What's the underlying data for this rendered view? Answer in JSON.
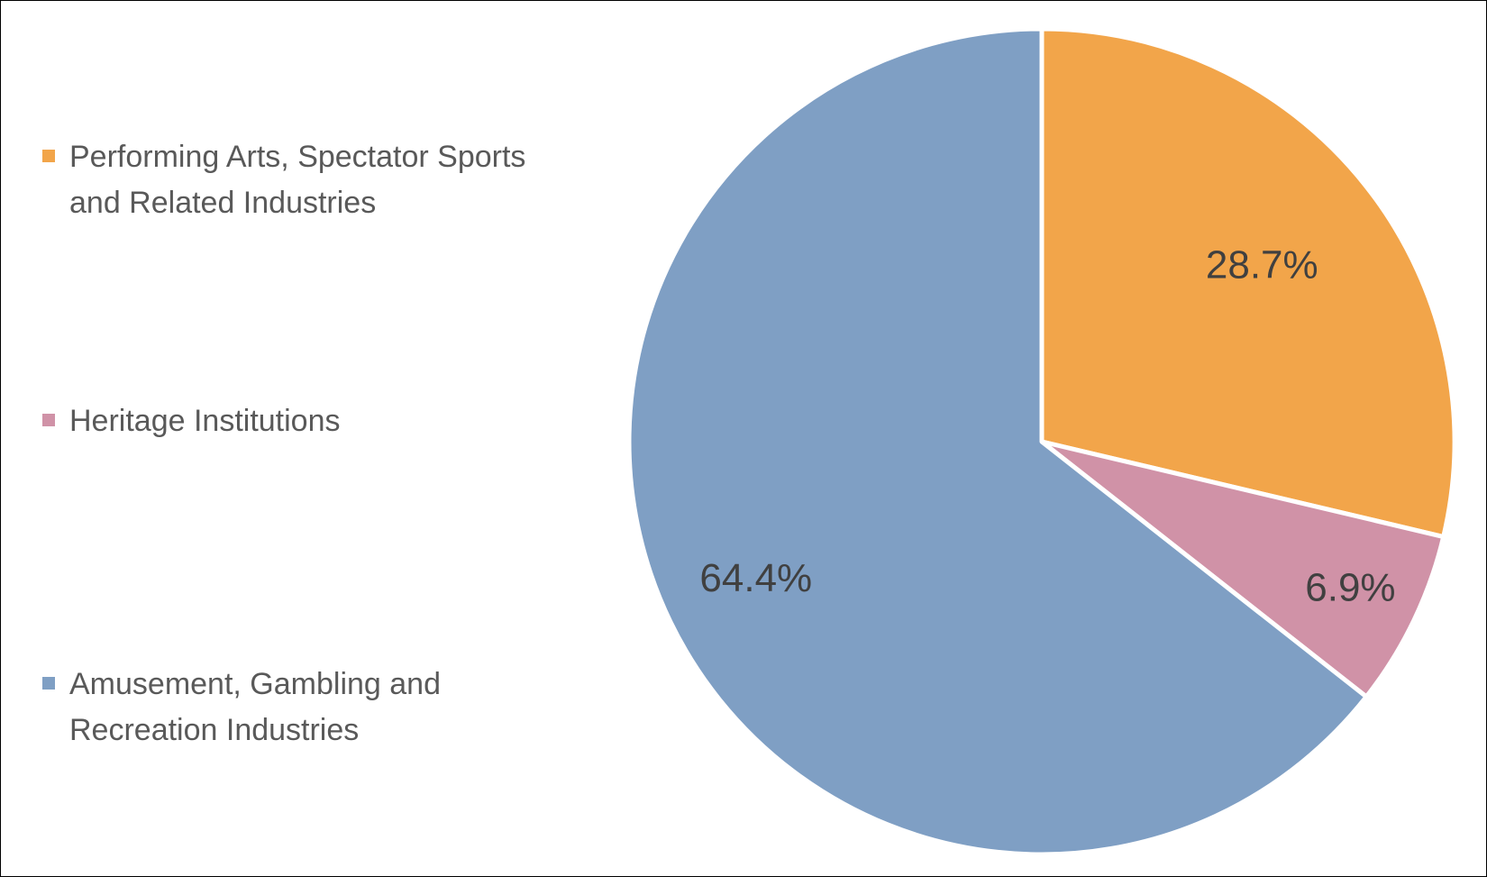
{
  "chart_data": {
    "type": "pie",
    "slices": [
      {
        "label": "Performing Arts, Spectator Sports and Related Industries",
        "value": 28.7,
        "value_label": "28.7%",
        "color": "#F2A54A"
      },
      {
        "label": "Heritage Institutions",
        "value": 6.9,
        "value_label": "6.9%",
        "color": "#D092A7"
      },
      {
        "label": "Amusement, Gambling and Recreation Industries",
        "value": 64.4,
        "value_label": "64.4%",
        "color": "#7F9FC4"
      }
    ],
    "legend_position": "left",
    "slice_border_color": "#FFFFFF"
  }
}
